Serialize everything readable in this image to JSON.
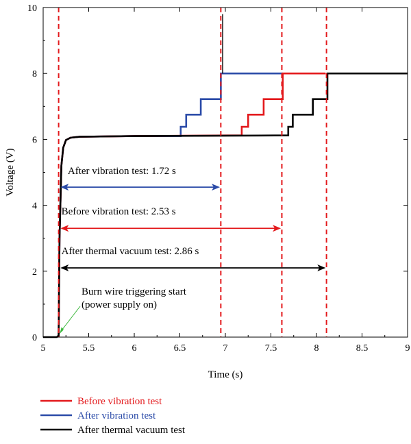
{
  "chart_data": {
    "type": "line",
    "xlabel": "Time (s)",
    "ylabel": "Voltage (V)",
    "xlim": [
      5,
      9
    ],
    "ylim": [
      0,
      10
    ],
    "x_ticks": [
      "5",
      "5.5",
      "6",
      "6.5",
      "7",
      "7.5",
      "8",
      "8.5",
      "9"
    ],
    "y_ticks": [
      "0",
      "2",
      "4",
      "6",
      "8",
      "10"
    ],
    "grid": false,
    "legend_placement": "bottom",
    "series": [
      {
        "name": "Before vibration test",
        "color": "#e3191c",
        "points": [
          [
            5.17,
            0
          ],
          [
            5.18,
            3.0
          ],
          [
            5.2,
            5.2
          ],
          [
            5.22,
            5.75
          ],
          [
            5.25,
            5.98
          ],
          [
            5.3,
            6.05
          ],
          [
            5.4,
            6.08
          ],
          [
            6.0,
            6.1
          ],
          [
            7.18,
            6.12
          ],
          [
            7.18,
            6.38
          ],
          [
            7.25,
            6.38
          ],
          [
            7.25,
            6.75
          ],
          [
            7.42,
            6.75
          ],
          [
            7.42,
            7.22
          ],
          [
            7.63,
            7.22
          ],
          [
            7.63,
            8.0
          ],
          [
            8.1,
            8.0
          ]
        ]
      },
      {
        "name": "After vibration test",
        "color": "#2b4ba8",
        "points": [
          [
            5.17,
            0
          ],
          [
            5.18,
            3.0
          ],
          [
            5.2,
            5.2
          ],
          [
            5.22,
            5.75
          ],
          [
            5.25,
            5.98
          ],
          [
            5.3,
            6.05
          ],
          [
            5.4,
            6.08
          ],
          [
            6.0,
            6.1
          ],
          [
            6.51,
            6.1
          ],
          [
            6.51,
            6.38
          ],
          [
            6.57,
            6.38
          ],
          [
            6.57,
            6.75
          ],
          [
            6.73,
            6.75
          ],
          [
            6.73,
            7.22
          ],
          [
            6.95,
            7.22
          ],
          [
            6.95,
            8.0
          ],
          [
            7.63,
            8.0
          ]
        ]
      },
      {
        "name": "After thermal vacuum test",
        "color": "#000000",
        "points": [
          [
            5.0,
            0
          ],
          [
            5.15,
            0
          ],
          [
            5.17,
            0.05
          ],
          [
            5.18,
            3.0
          ],
          [
            5.2,
            5.2
          ],
          [
            5.22,
            5.75
          ],
          [
            5.25,
            5.98
          ],
          [
            5.3,
            6.05
          ],
          [
            5.4,
            6.08
          ],
          [
            6.0,
            6.1
          ],
          [
            7.69,
            6.12
          ],
          [
            7.69,
            6.38
          ],
          [
            7.74,
            6.38
          ],
          [
            7.74,
            6.75
          ],
          [
            7.96,
            6.75
          ],
          [
            7.96,
            7.22
          ],
          [
            8.12,
            7.22
          ],
          [
            8.12,
            8.0
          ],
          [
            9.0,
            8.0
          ]
        ]
      }
    ],
    "spike": {
      "x": 6.97,
      "y_low": 8.0,
      "y_high": 9.8,
      "color": "#000000"
    },
    "vertical_markers": [
      5.17,
      6.95,
      7.62,
      8.11
    ],
    "vertical_marker_color": "#e3191c",
    "annotations": [
      {
        "text": "After vibration test: 1.72 s",
        "color": "#2b4ba8",
        "y": 4.55,
        "x_start": 5.19,
        "x_end": 6.94,
        "label_x": 5.27,
        "label_y": 4.95
      },
      {
        "text": "Before vibration test: 2.53 s",
        "color": "#e3191c",
        "y": 3.3,
        "x_start": 5.19,
        "x_end": 7.61,
        "label_x": 5.2,
        "label_y": 3.72
      },
      {
        "text": "After thermal vacuum test: 2.86 s",
        "color": "#000000",
        "y": 2.1,
        "x_start": 5.19,
        "x_end": 8.1,
        "label_x": 5.2,
        "label_y": 2.52
      }
    ],
    "callout": {
      "lines": [
        "Burn wire triggering start",
        "(power supply on)"
      ],
      "color": "#3db83d",
      "point_x": 5.18,
      "point_y": 0.1
    }
  }
}
